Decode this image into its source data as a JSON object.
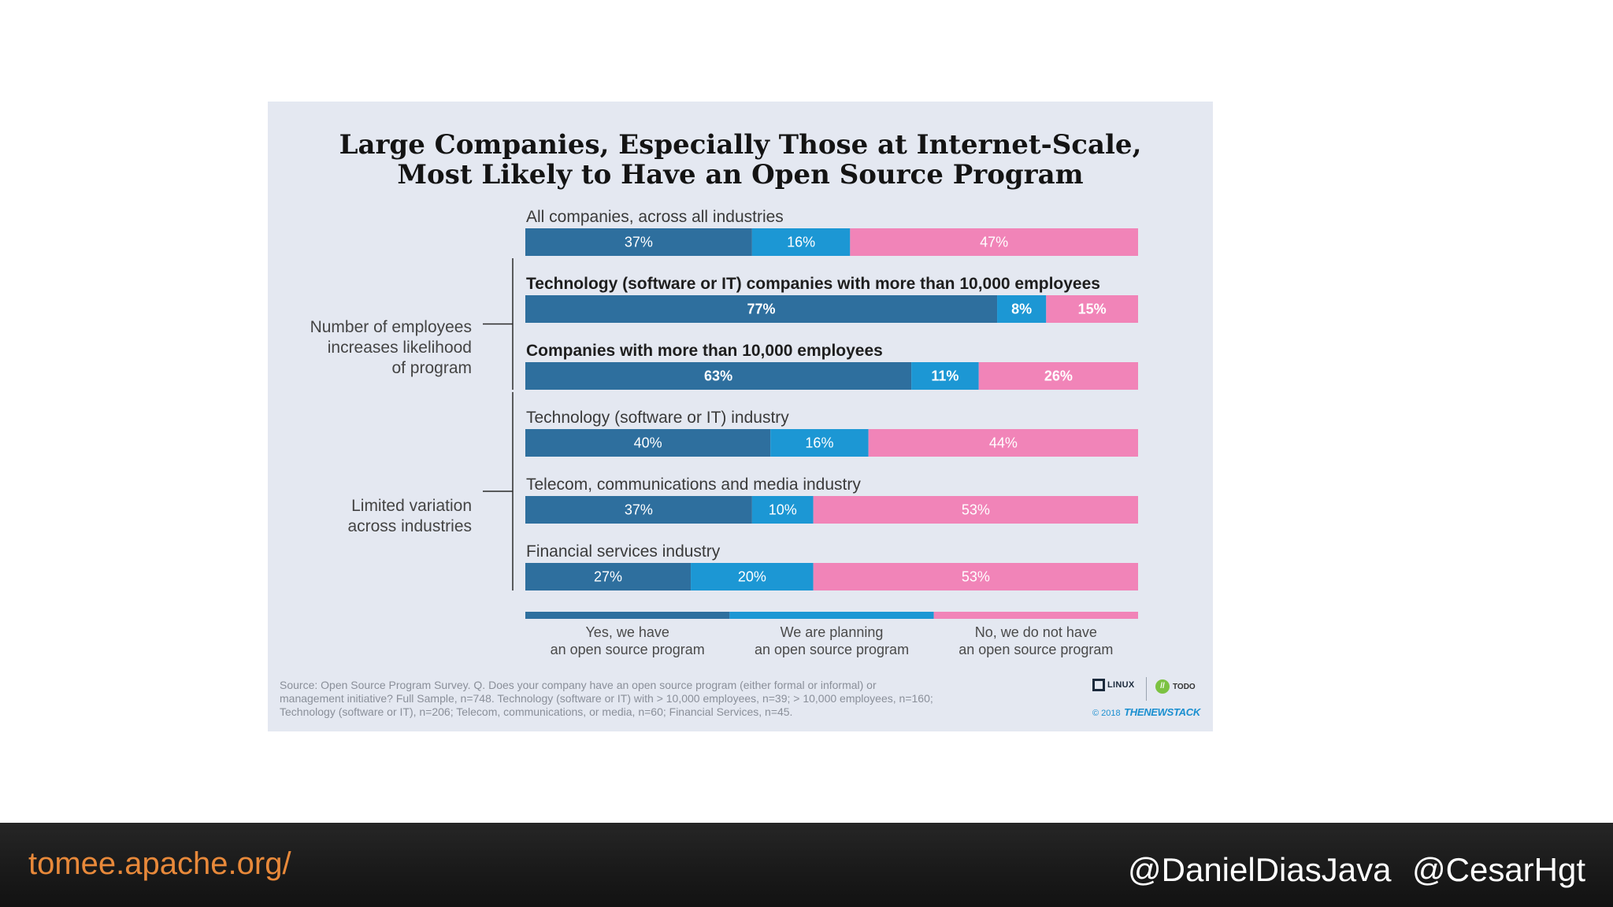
{
  "chart_data": {
    "type": "bar",
    "orientation": "horizontal",
    "stacked": true,
    "title": "Large Companies, Especially Those at Internet-Scale, Most Likely to Have an Open Source Program",
    "title_lines": [
      "Large Companies, Especially Those at Internet-Scale,",
      "Most Likely to Have an Open Source Program"
    ],
    "xlim": [
      0,
      100
    ],
    "unit": "%",
    "categories": [
      "All companies, across all industries",
      "Technology (software or IT) companies with more than 10,000 employees",
      "Companies with more than 10,000 employees",
      "Technology (software or IT) industry",
      "Telecom, communications and media industry",
      "Financial services industry"
    ],
    "bold_categories": [
      false,
      true,
      true,
      false,
      false,
      false
    ],
    "series": [
      {
        "name": "Yes, we have an open source program",
        "color": "#2e6f9e",
        "values": [
          37,
          77,
          63,
          40,
          37,
          27
        ]
      },
      {
        "name": "We are planning an open source program",
        "color": "#1c97d4",
        "values": [
          16,
          8,
          11,
          16,
          10,
          20
        ]
      },
      {
        "name": "No, we do not have an open source program",
        "color": "#f184b8",
        "values": [
          47,
          15,
          26,
          44,
          53,
          53
        ]
      }
    ],
    "legend": {
      "position": "bottom",
      "entries": [
        [
          "Yes, we have",
          "an open source program"
        ],
        [
          "We are planning",
          "an open source program"
        ],
        [
          "No, we do not have",
          "an open source program"
        ]
      ]
    },
    "groups": [
      {
        "label_lines": [
          "Number of employees",
          "increases likelihood",
          "of program"
        ],
        "rows": [
          1,
          2
        ]
      },
      {
        "label_lines": [
          "Limited variation",
          "across industries"
        ],
        "rows": [
          3,
          4,
          5
        ]
      }
    ],
    "source": "Source: Open Source Program Survey. Q. Does your company have an open source program (either formal or informal) or management initiative? Full Sample, n=748. Technology (software or IT) with > 10,000 employees, n=39; > 10,000 employees, n=160; Technology (software or IT), n=206; Telecom, communications, or media, n=60; Financial Services, n=45.",
    "source_lines": [
      "Source: Open Source Program Survey. Q. Does your company have an open source program (either formal or informal) or",
      "management initiative? Full Sample, n=748. Technology (software or IT) with > 10,000 employees, n=39; > 10,000 employees, n=160;",
      "Technology (software or IT), n=206; Telecom, communications, or media, n=60; Financial Services, n=45."
    ]
  },
  "logos": {
    "linux_foundation": "LINUX",
    "todo_mark": "//",
    "todo_text": "TODO",
    "credit_year": "© 2018",
    "credit_brand": "THENEWSTACK"
  },
  "footer": {
    "url": "tomee.apache.org/",
    "handles": [
      "@DanielDiasJava",
      "@CesarHgt"
    ],
    "url_color": "#e8893a"
  }
}
